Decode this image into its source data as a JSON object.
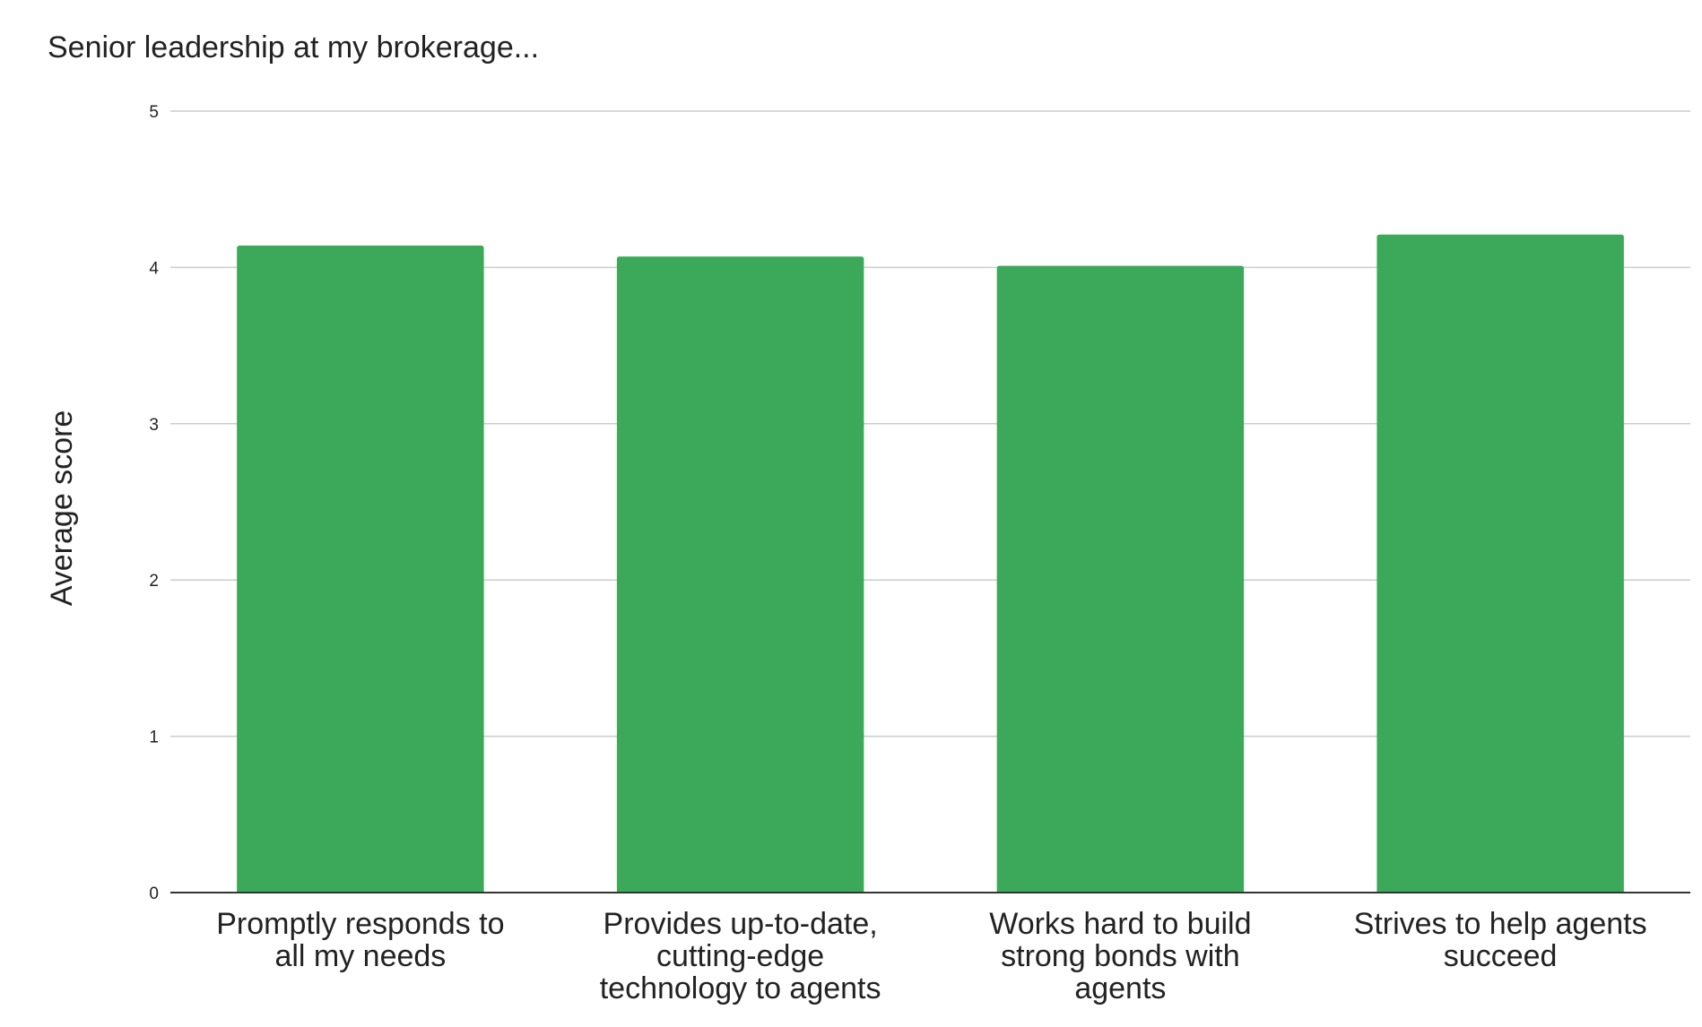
{
  "chart_data": {
    "type": "bar",
    "title": "Senior leadership at my brokerage...",
    "xlabel": "",
    "ylabel": "Average score",
    "categories": [
      [
        "Promptly responds to",
        "all my needs"
      ],
      [
        "Provides up-to-date,",
        "cutting-edge",
        "technology to agents"
      ],
      [
        "Works hard to build",
        "strong bonds with",
        "agents"
      ],
      [
        "Strives to help agents",
        "succeed"
      ]
    ],
    "values": [
      4.14,
      4.07,
      4.01,
      4.21
    ],
    "ylim": [
      0,
      5
    ],
    "yticks": [
      0,
      1,
      2,
      3,
      4,
      5
    ],
    "grid": true,
    "legend": "none",
    "colors": {
      "bar": "#3ca85a",
      "grid": "#cccccc",
      "baseline": "#333333",
      "text": "#222222"
    }
  }
}
